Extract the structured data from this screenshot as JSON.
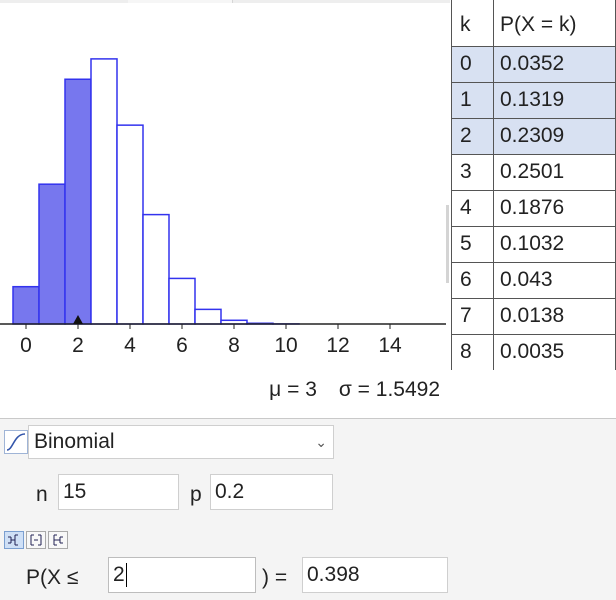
{
  "distribution": {
    "selected": "Binomial",
    "icon": "distribution-curve-icon"
  },
  "params": {
    "n_label": "n",
    "n_value": "15",
    "p_label": "p",
    "p_value": "0.2"
  },
  "probability": {
    "prefix": "P(X ≤",
    "bound": "2",
    "suffix": ") =",
    "result": "0.398",
    "modes": [
      "left-sided",
      "interval",
      "right-sided"
    ],
    "active_mode": "left-sided"
  },
  "statistics": {
    "mean": "μ = 3",
    "sd": "σ = 1.5492"
  },
  "table": {
    "headers": [
      "k",
      "P(X = k)"
    ],
    "rows": [
      [
        "0",
        "0.0352"
      ],
      [
        "1",
        "0.1319"
      ],
      [
        "2",
        "0.2309"
      ],
      [
        "3",
        "0.2501"
      ],
      [
        "4",
        "0.1876"
      ],
      [
        "5",
        "0.1032"
      ],
      [
        "6",
        "0.043"
      ],
      [
        "7",
        "0.0138"
      ],
      [
        "8",
        "0.0035"
      ]
    ],
    "highlighted": [
      "0",
      "1",
      "2"
    ]
  },
  "colors": {
    "accent": "#3333ee",
    "fill": "#7777ee",
    "highlight_row": "#d8e1f2"
  },
  "chart_data": {
    "type": "bar",
    "x": [
      0,
      1,
      2,
      3,
      4,
      5,
      6,
      7,
      8,
      9,
      10,
      11,
      12,
      13,
      14,
      15
    ],
    "values": [
      0.0352,
      0.1319,
      0.2309,
      0.2501,
      0.1876,
      0.1032,
      0.043,
      0.0138,
      0.0035,
      0.0007,
      0.0001,
      0,
      0,
      0,
      0,
      0
    ],
    "filled_up_to": 2,
    "marker_at": 2,
    "xticks": [
      "0",
      "2",
      "4",
      "6",
      "8",
      "10",
      "12",
      "14"
    ],
    "xlim": [
      -1,
      16.2
    ],
    "ylim": [
      0,
      0.27
    ],
    "grid": false
  }
}
